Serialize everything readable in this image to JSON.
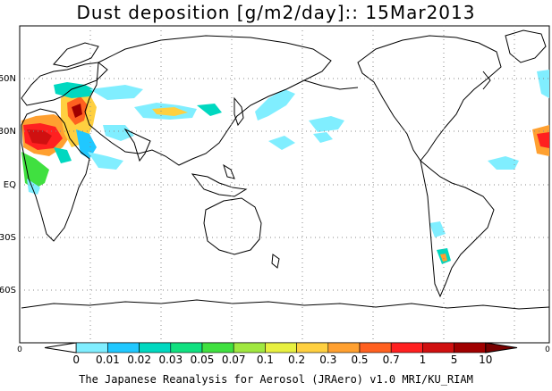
{
  "title": "Dust deposition [g/m2/day]:: 15Mar2013",
  "lat_labels": [
    "60N",
    "30N",
    "EQ",
    "30S",
    "60S"
  ],
  "axis_left": "0",
  "axis_right": "0",
  "colorbar": {
    "values": [
      "0",
      "0.01",
      "0.02",
      "0.03",
      "0.05",
      "0.07",
      "0.1",
      "0.2",
      "0.3",
      "0.5",
      "0.7",
      "1",
      "5",
      "10"
    ],
    "colors": [
      "#ffffff",
      "#80eeff",
      "#20c8ff",
      "#00d8c0",
      "#10e080",
      "#40e040",
      "#a0e840",
      "#e8f040",
      "#ffd040",
      "#ffa030",
      "#ff6020",
      "#ff2020",
      "#d01010",
      "#a00000",
      "#780000"
    ]
  },
  "credit": "The Japanese Reanalysis for Aerosol (JRAero) v1.0 MRI/KU_RIAM"
}
